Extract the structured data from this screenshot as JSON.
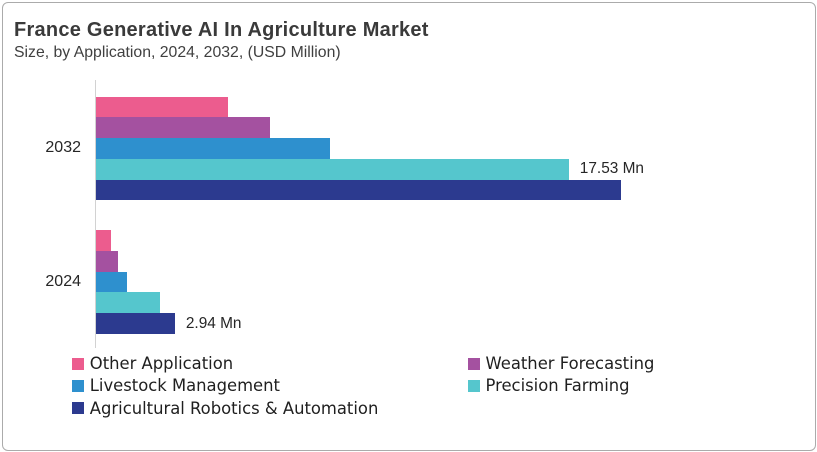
{
  "header": {
    "title": "France Generative AI In Agriculture Market",
    "subtitle": "Size, by Application, 2024, 2032, (USD Million)"
  },
  "chart_data": {
    "type": "bar",
    "orientation": "horizontal",
    "title": "France Generative AI In Agriculture Market",
    "subtitle": "Size, by Application, 2024, 2032, (USD Million)",
    "unit": "USD Million",
    "categories": [
      "2032",
      "2024"
    ],
    "series": [
      {
        "name": "Other Application",
        "color": "#ec5c8e",
        "values": [
          4.9,
          0.57
        ]
      },
      {
        "name": "Weather Forecasting",
        "color": "#a451a0",
        "values": [
          6.43,
          0.8
        ]
      },
      {
        "name": "Livestock Management",
        "color": "#2e90ce",
        "values": [
          8.68,
          1.13
        ]
      },
      {
        "name": "Precision Farming",
        "color": "#55c6cd",
        "values": [
          17.53,
          2.36
        ]
      },
      {
        "name": "Agricultural Robotics & Automation",
        "color": "#2c3a8f",
        "values": [
          19.45,
          2.94
        ]
      }
    ],
    "xlim": [
      0,
      26
    ],
    "grid": false,
    "legend_position": "bottom",
    "value_labels": [
      {
        "category": "2032",
        "series": "Precision Farming",
        "text": "17.53 Mn"
      },
      {
        "category": "2024",
        "series": "Agricultural Robotics & Automation",
        "text": "2.94 Mn"
      }
    ]
  }
}
